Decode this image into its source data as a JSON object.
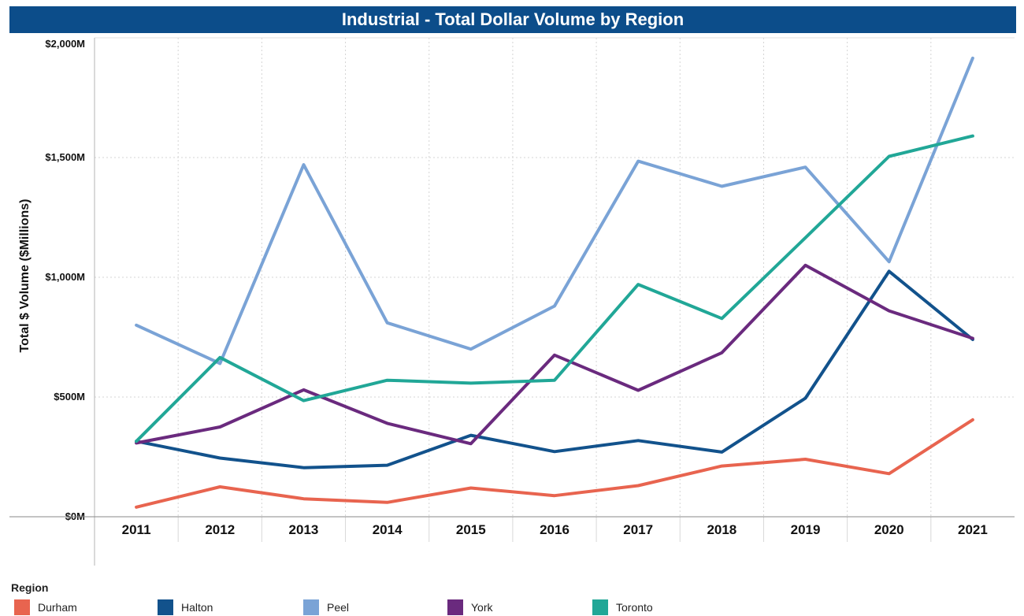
{
  "chart_data": {
    "type": "line",
    "title": "Industrial - Total Dollar Volume by Region",
    "ylabel": "Total $ Volume ($Millions)",
    "xlabel": "",
    "ylim": [
      0,
      2000
    ],
    "yticks": [
      0,
      500,
      1000,
      1500,
      2000
    ],
    "ytick_labels": [
      "$0M",
      "$500M",
      "$1,000M",
      "$1,500M",
      "$2,000M"
    ],
    "categories": [
      "2011",
      "2012",
      "2013",
      "2014",
      "2015",
      "2016",
      "2017",
      "2018",
      "2019",
      "2020",
      "2021"
    ],
    "grid": true,
    "legend_title": "Region",
    "legend_position": "bottom",
    "series": [
      {
        "name": "Durham",
        "color": "#e8644f",
        "values": [
          40,
          125,
          75,
          60,
          120,
          88,
          130,
          212,
          240,
          180,
          405
        ]
      },
      {
        "name": "Halton",
        "color": "#12528c",
        "values": [
          315,
          245,
          205,
          215,
          340,
          272,
          318,
          270,
          495,
          1025,
          740
        ]
      },
      {
        "name": "Peel",
        "color": "#7aa3d6",
        "values": [
          800,
          640,
          1470,
          810,
          700,
          880,
          1485,
          1380,
          1460,
          1065,
          1915
        ]
      },
      {
        "name": "York",
        "color": "#6a2a7e",
        "values": [
          308,
          375,
          530,
          390,
          305,
          675,
          528,
          685,
          1050,
          860,
          745
        ]
      },
      {
        "name": "Toronto",
        "color": "#21a797",
        "values": [
          315,
          665,
          485,
          570,
          558,
          570,
          970,
          828,
          1165,
          1505,
          1590
        ]
      }
    ]
  }
}
